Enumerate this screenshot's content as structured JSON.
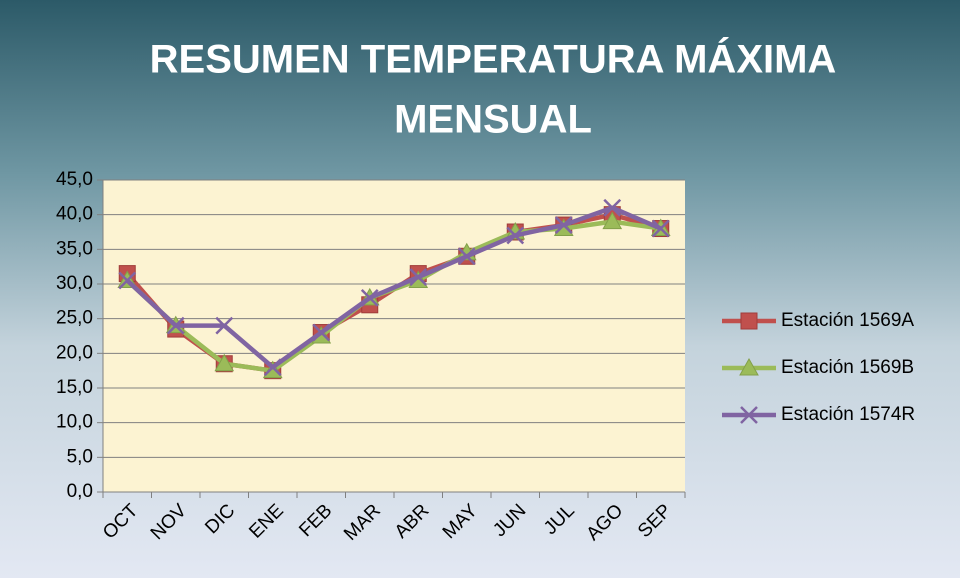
{
  "chart_data": {
    "type": "line",
    "title": [
      "RESUMEN TEMPERATURA MÁXIMA",
      "MENSUAL"
    ],
    "categories": [
      "OCT",
      "NOV",
      "DIC",
      "ENE",
      "FEB",
      "MAR",
      "ABR",
      "MAY",
      "JUN",
      "JUL",
      "AGO",
      "SEP"
    ],
    "series": [
      {
        "name": "Estación 1569A",
        "color": "#c0504d",
        "marker": "square",
        "values": [
          31.5,
          23.5,
          18.5,
          17.5,
          23,
          27,
          31.5,
          34,
          37.5,
          38.5,
          40,
          38
        ]
      },
      {
        "name": "Estación 1569B",
        "color": "#9bbb59",
        "marker": "triangle",
        "values": [
          30.5,
          24,
          18.5,
          17.5,
          22.5,
          28,
          30.5,
          34.5,
          37.5,
          38,
          39,
          38
        ]
      },
      {
        "name": "Estación 1574R",
        "color": "#8064a2",
        "marker": "x",
        "values": [
          30.5,
          24,
          24,
          18,
          23,
          28,
          31,
          34,
          37,
          38.5,
          41,
          38
        ]
      }
    ],
    "ylim": [
      0,
      45
    ],
    "yticks": [
      {
        "value": 0,
        "label": "0,0"
      },
      {
        "value": 5,
        "label": "5,0"
      },
      {
        "value": 10,
        "label": "10,0"
      },
      {
        "value": 15,
        "label": "15,0"
      },
      {
        "value": 20,
        "label": "20,0"
      },
      {
        "value": 25,
        "label": "25,0"
      },
      {
        "value": 30,
        "label": "30,0"
      },
      {
        "value": 35,
        "label": "35,0"
      },
      {
        "value": 40,
        "label": "40,0"
      },
      {
        "value": 45,
        "label": "45,0"
      }
    ],
    "grid": true,
    "legend": "right"
  }
}
